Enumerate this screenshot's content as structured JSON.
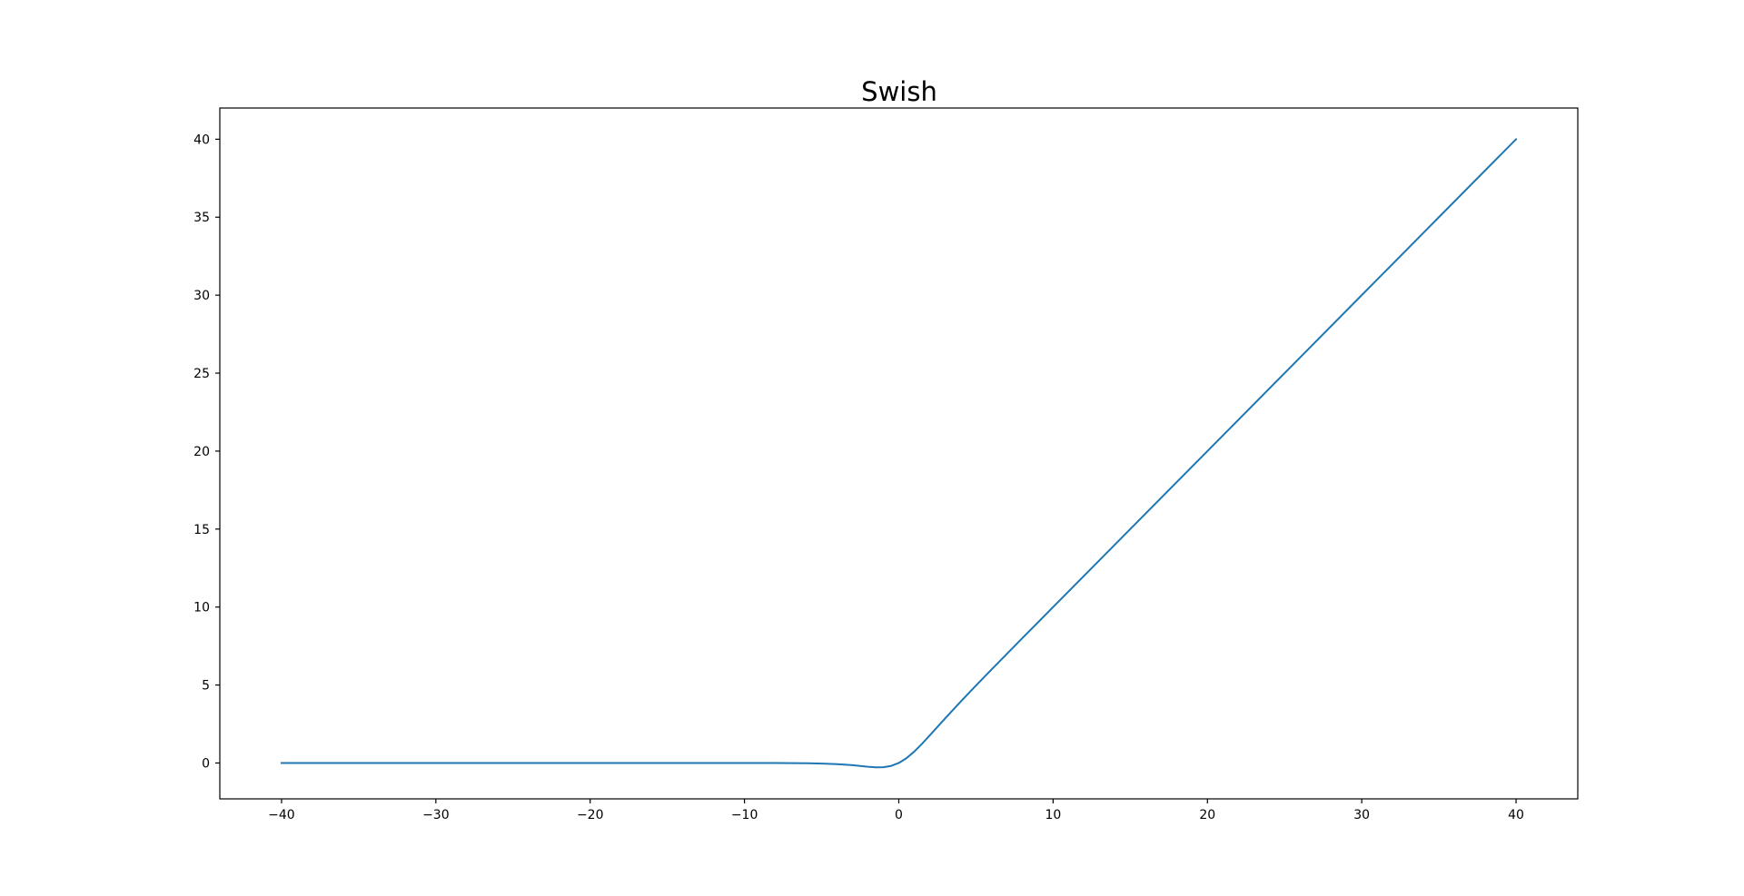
{
  "chart_data": {
    "type": "line",
    "title": "Swish",
    "xlabel": "",
    "ylabel": "",
    "xlim": [
      -44,
      44
    ],
    "ylim": [
      -2.3,
      42.0
    ],
    "xticks": [
      -40,
      -30,
      -20,
      -10,
      0,
      10,
      20,
      30,
      40
    ],
    "xtick_labels": [
      "−40",
      "−30",
      "−20",
      "−10",
      "0",
      "10",
      "20",
      "30",
      "40"
    ],
    "yticks": [
      0,
      5,
      10,
      15,
      20,
      25,
      30,
      35,
      40
    ],
    "ytick_labels": [
      "0",
      "5",
      "10",
      "15",
      "20",
      "25",
      "30",
      "35",
      "40"
    ],
    "grid": false,
    "series": [
      {
        "color": "#1f77b4",
        "x": [
          -40,
          -30,
          -20,
          -10,
          -8,
          -6,
          -5,
          -4,
          -3,
          -2.5,
          -2,
          -1.5,
          -1.28,
          -1,
          -0.5,
          0,
          0.5,
          1,
          1.5,
          2,
          2.5,
          3,
          4,
          5,
          6,
          8,
          10,
          15,
          20,
          25,
          30,
          35,
          40
        ],
        "y": [
          0.0,
          0.0,
          0.0,
          -0.0005,
          -0.0027,
          -0.0148,
          -0.0335,
          -0.0719,
          -0.1423,
          -0.1896,
          -0.2384,
          -0.2736,
          -0.2785,
          -0.2689,
          -0.1888,
          0.0,
          0.3112,
          0.7311,
          1.2264,
          1.7616,
          2.3104,
          2.8577,
          3.9281,
          4.9665,
          5.9852,
          7.9973,
          9.9995,
          15.0,
          20.0,
          25.0,
          30.0,
          35.0,
          40.0
        ]
      }
    ]
  }
}
